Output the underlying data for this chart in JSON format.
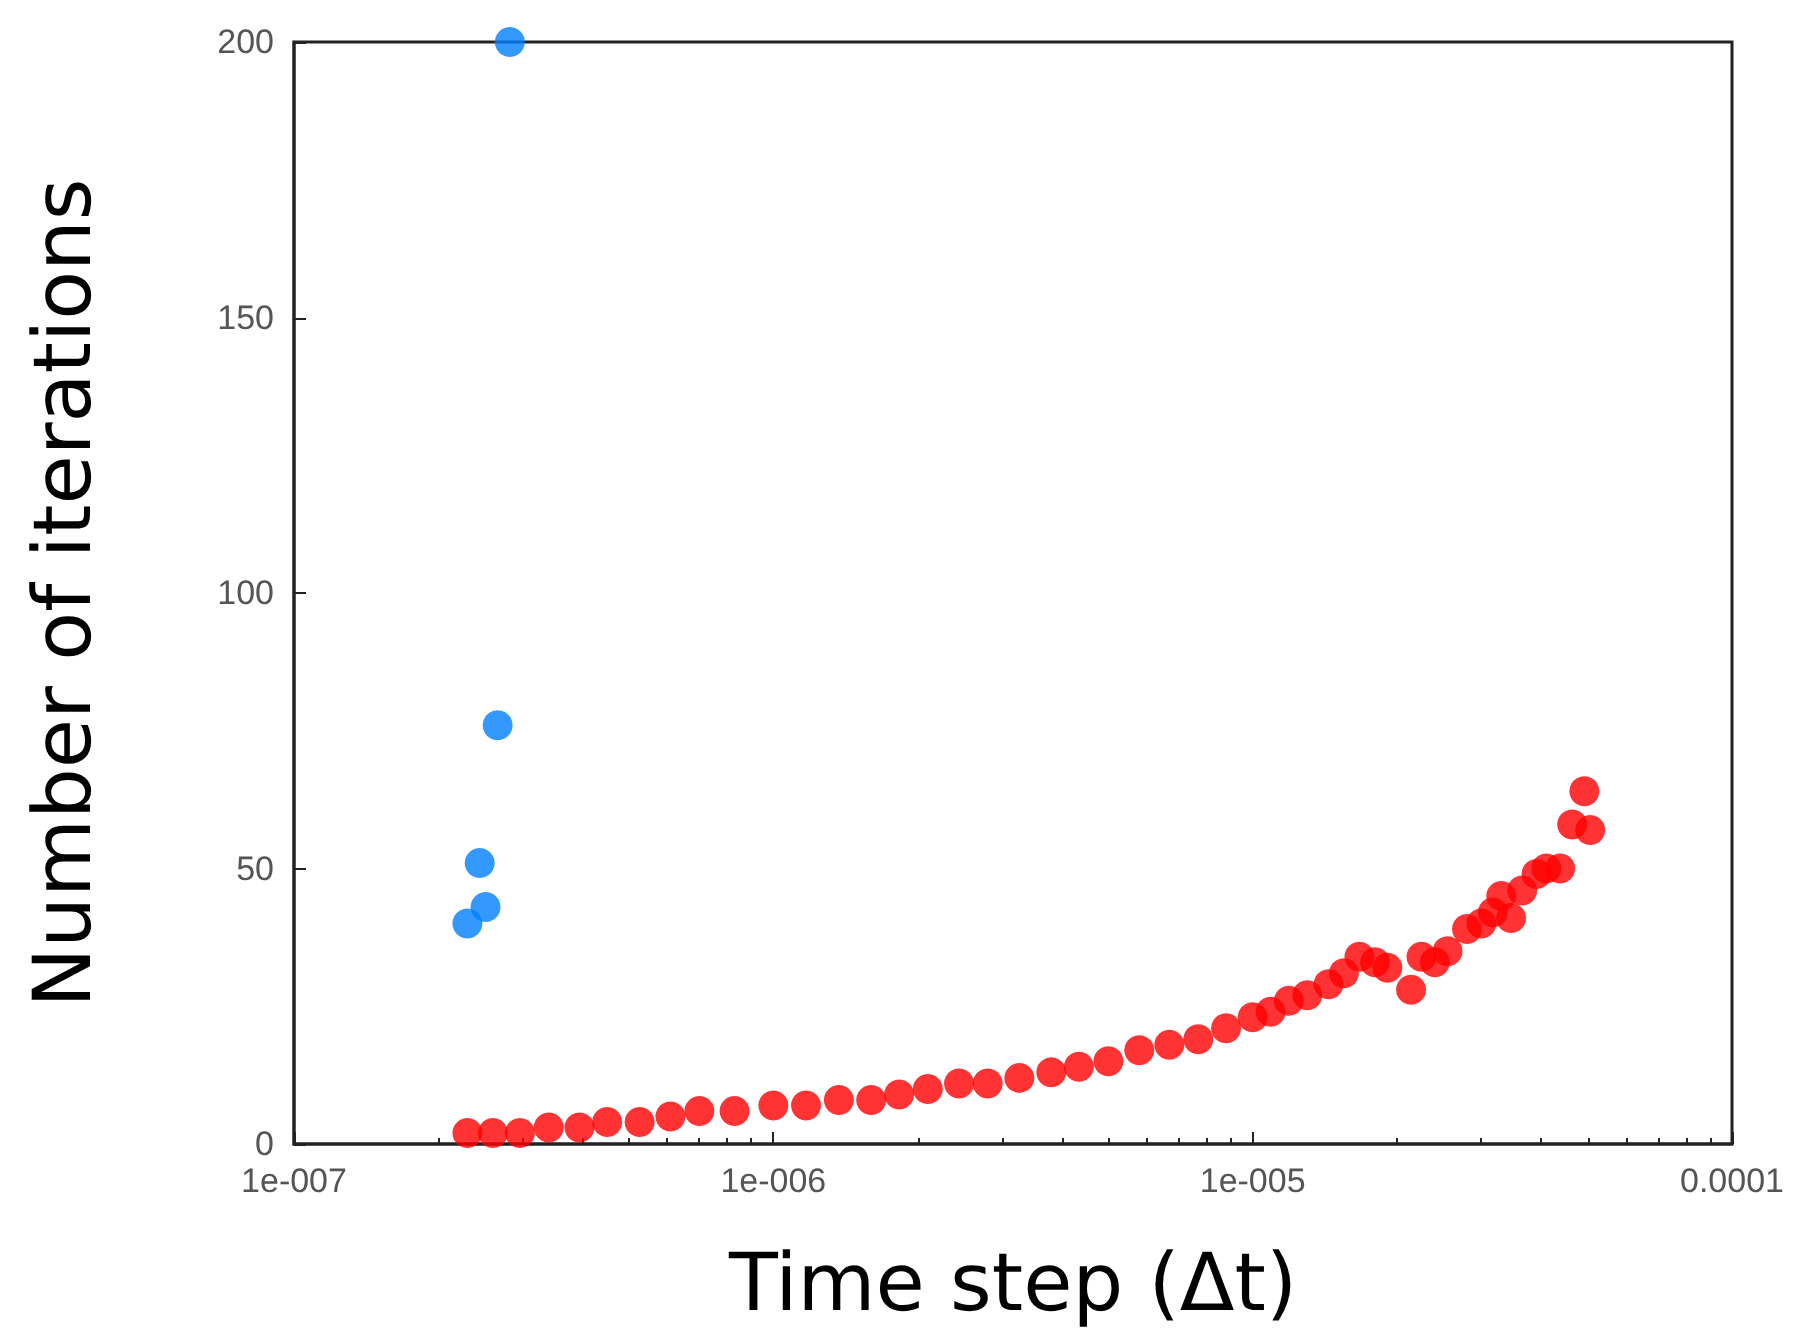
{
  "chart_data": {
    "type": "scatter",
    "xlabel": "Time step (Δt)",
    "ylabel": "Number of iterations",
    "log": "x",
    "xlim": [
      1e-07,
      0.0001
    ],
    "xticks": [
      {
        "value": 1e-07,
        "label": "1e-007"
      },
      {
        "value": 1e-06,
        "label": "1e-006"
      },
      {
        "value": 1e-05,
        "label": "1e-005"
      },
      {
        "value": 0.0001,
        "label": "0.0001"
      }
    ],
    "ylim": [
      0,
      200
    ],
    "yticks": [
      0,
      50,
      100,
      150,
      200
    ],
    "grid": false,
    "marker": "circle",
    "series": [
      {
        "color": "#0080ff",
        "x": [
          2.3e-07,
          2.44e-07,
          2.51e-07,
          2.66e-07,
          2.82e-07
        ],
        "values": [
          40,
          51,
          43,
          76,
          200
        ]
      },
      {
        "color": "#ff0000",
        "x": [
          2.3e-07,
          2.6e-07,
          2.96e-07,
          3.4e-07,
          3.94e-07,
          4.5e-07,
          5.26e-07,
          6.1e-07,
          7.01e-07,
          8.3e-07,
          1e-06,
          1.17e-06,
          1.37e-06,
          1.6e-06,
          1.83e-06,
          2.1e-06,
          2.44e-06,
          2.8e-06,
          3.26e-06,
          3.8e-06,
          4.34e-06,
          5e-06,
          5.8e-06,
          6.7e-06,
          7.7e-06,
          8.8e-06,
          1e-05,
          1.09e-05,
          1.19e-05,
          1.3e-05,
          1.44e-05,
          1.55e-05,
          1.67e-05,
          1.8e-05,
          1.91e-05,
          2.14e-05,
          2.25e-05,
          2.4e-05,
          2.55e-05,
          2.8e-05,
          3e-05,
          3.17e-05,
          3.3e-05,
          3.46e-05,
          3.65e-05,
          3.91e-05,
          4.1e-05,
          4.38e-05,
          4.64e-05,
          4.92e-05,
          5.06e-05
        ],
        "values": [
          2,
          2,
          2,
          3,
          3,
          4,
          4,
          5,
          6,
          6,
          7,
          7,
          8,
          8,
          9,
          10,
          11,
          11,
          12,
          13,
          14,
          15,
          17,
          18,
          19,
          21,
          23,
          24,
          26,
          27,
          29,
          31,
          34,
          33,
          32,
          28,
          34,
          33,
          35,
          39,
          40,
          42,
          45,
          41,
          46,
          49,
          50,
          50,
          58,
          64,
          57
        ]
      }
    ]
  }
}
